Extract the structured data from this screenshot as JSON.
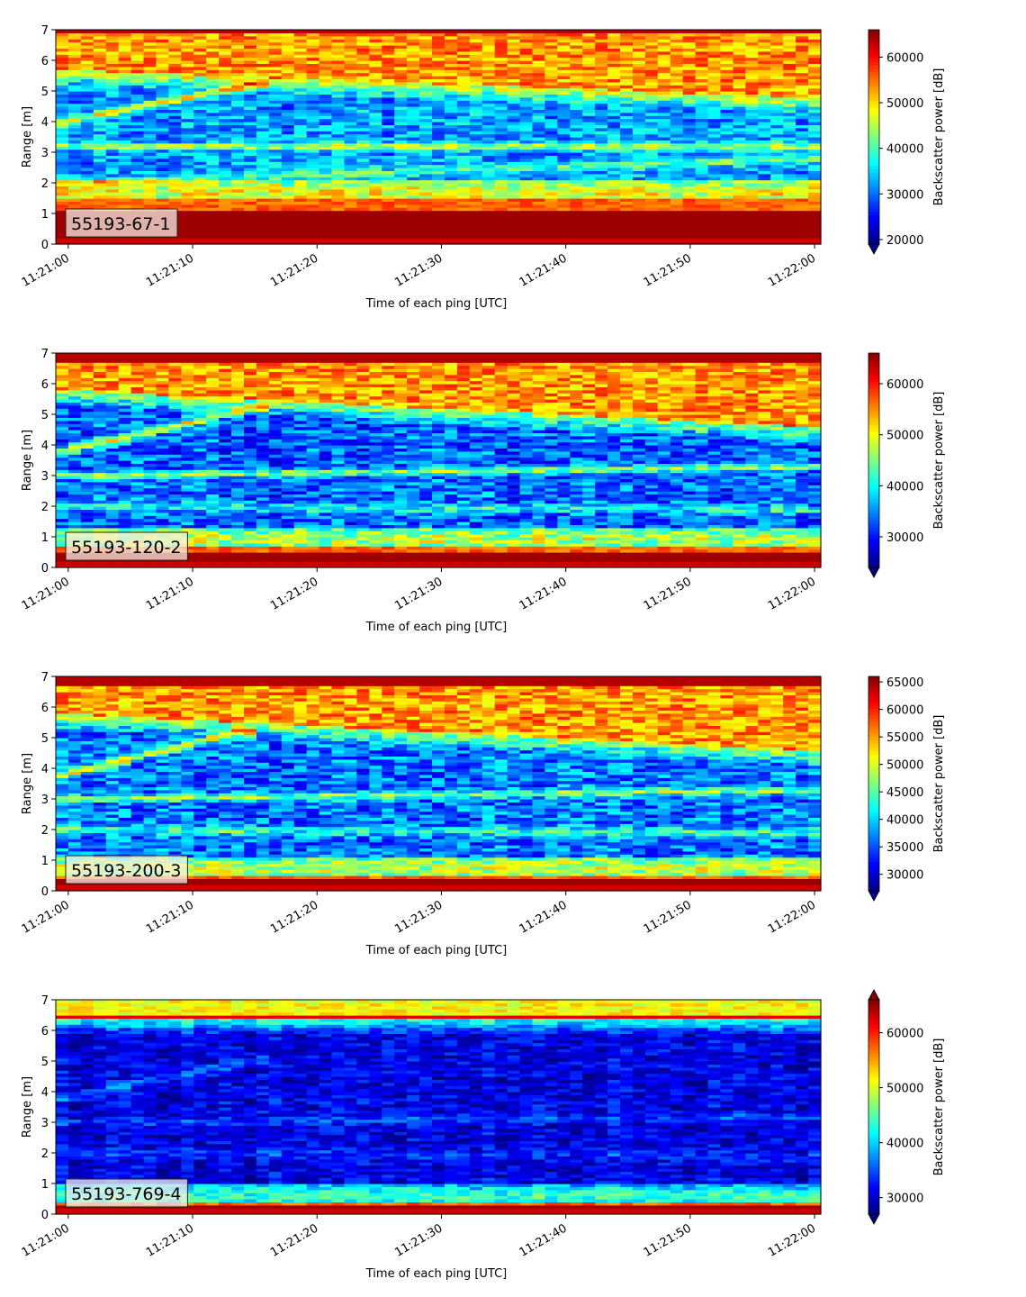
{
  "colors": {
    "colormap": "jet"
  },
  "chart_data": [
    {
      "type": "heatmap",
      "panel_label": "55193-67-1",
      "xlabel": "Time of each ping [UTC]",
      "ylabel": "Range [m]",
      "colorbar_label": "Backscatter power [dB]",
      "x_ticks": [
        "11:21:00",
        "11:21:10",
        "11:21:20",
        "11:21:30",
        "11:21:40",
        "11:21:50",
        "11:22:00"
      ],
      "y_ticks": [
        "0",
        "1",
        "2",
        "3",
        "4",
        "5",
        "6",
        "7"
      ],
      "xlim": [
        "11:20:59",
        "11:22:00.5"
      ],
      "ylim": [
        0,
        7
      ],
      "colorbar_ticks": [
        "20000",
        "30000",
        "40000",
        "50000",
        "60000"
      ],
      "colorbar_range": [
        19000,
        66000
      ],
      "colorbar_extend": "min",
      "seed": 11,
      "features": {
        "bottom_strong_top": 1.1,
        "bottom_orange_top": 1.5,
        "top_band_start": 6.9,
        "upper_edge_start": 5.7,
        "upper_edge_end": 4.8,
        "slant_start": 4.0,
        "slant_end": 5.2,
        "slant_end_time": 15,
        "line_start": 3.2,
        "line_end": 3.2,
        "lower_line_start": 2.0,
        "lower_line_end": 2.8,
        "background_level": 0.28,
        "noise": 0.12
      }
    },
    {
      "type": "heatmap",
      "panel_label": "55193-120-2",
      "xlabel": "Time of each ping [UTC]",
      "ylabel": "Range [m]",
      "colorbar_label": "Backscatter power [dB]",
      "x_ticks": [
        "11:21:00",
        "11:21:10",
        "11:21:20",
        "11:21:30",
        "11:21:40",
        "11:21:50",
        "11:22:00"
      ],
      "y_ticks": [
        "0",
        "1",
        "2",
        "3",
        "4",
        "5",
        "6",
        "7"
      ],
      "xlim": [
        "11:20:59",
        "11:22:00.5"
      ],
      "ylim": [
        0,
        7
      ],
      "colorbar_ticks": [
        "30000",
        "40000",
        "50000",
        "60000"
      ],
      "colorbar_range": [
        24000,
        66000
      ],
      "colorbar_extend": "min",
      "seed": 23,
      "features": {
        "bottom_strong_top": 0.55,
        "bottom_orange_top": 0.75,
        "top_band_start": 6.7,
        "upper_edge_start": 5.8,
        "upper_edge_end": 4.6,
        "slant_start": 3.8,
        "slant_end": 5.2,
        "slant_end_time": 15,
        "line_start": 3.0,
        "line_end": 3.3,
        "lower_line_start": 2.0,
        "lower_line_end": 1.9,
        "background_level": 0.22,
        "noise": 0.13
      }
    },
    {
      "type": "heatmap",
      "panel_label": "55193-200-3",
      "xlabel": "Time of each ping [UTC]",
      "ylabel": "Range [m]",
      "colorbar_label": "Backscatter power [dB]",
      "x_ticks": [
        "11:21:00",
        "11:21:10",
        "11:21:20",
        "11:21:30",
        "11:21:40",
        "11:21:50",
        "11:22:00"
      ],
      "y_ticks": [
        "0",
        "1",
        "2",
        "3",
        "4",
        "5",
        "6",
        "7"
      ],
      "xlim": [
        "11:20:59",
        "11:22:00.5"
      ],
      "ylim": [
        0,
        7
      ],
      "colorbar_ticks": [
        "30000",
        "35000",
        "40000",
        "45000",
        "50000",
        "55000",
        "60000",
        "65000"
      ],
      "colorbar_range": [
        27000,
        66000
      ],
      "colorbar_extend": "min",
      "seed": 37,
      "features": {
        "bottom_strong_top": 0.4,
        "bottom_orange_top": 0.55,
        "top_band_start": 6.7,
        "upper_edge_start": 5.8,
        "upper_edge_end": 4.6,
        "slant_start": 3.8,
        "slant_end": 5.2,
        "slant_end_time": 14,
        "line_start": 3.0,
        "line_end": 3.3,
        "lower_line_start": 2.0,
        "lower_line_end": 1.9,
        "background_level": 0.24,
        "noise": 0.13
      }
    },
    {
      "type": "heatmap",
      "panel_label": "55193-769-4",
      "xlabel": "Time of each ping [UTC]",
      "ylabel": "Range [m]",
      "colorbar_label": "Backscatter power [dB]",
      "x_ticks": [
        "11:21:00",
        "11:21:10",
        "11:21:20",
        "11:21:30",
        "11:21:40",
        "11:21:50",
        "11:22:00"
      ],
      "y_ticks": [
        "0",
        "1",
        "2",
        "3",
        "4",
        "5",
        "6",
        "7"
      ],
      "xlim": [
        "11:20:59",
        "11:22:00.5"
      ],
      "ylim": [
        0,
        7
      ],
      "colorbar_ticks": [
        "30000",
        "40000",
        "50000",
        "60000"
      ],
      "colorbar_range": [
        27000,
        66000
      ],
      "colorbar_extend": "both",
      "seed": 53,
      "features": {
        "bottom_strong_top": 0.3,
        "bottom_orange_top": 0.4,
        "top_band_start": 6.5,
        "upper_edge_start": 6.4,
        "upper_edge_end": 6.4,
        "slant_start": 3.8,
        "slant_end": 5.0,
        "slant_end_time": 15,
        "line_start": 3.0,
        "line_end": 3.2,
        "lower_line_start": 2.0,
        "lower_line_end": 1.9,
        "background_level": 0.1,
        "noise": 0.09,
        "faint": true
      }
    }
  ]
}
